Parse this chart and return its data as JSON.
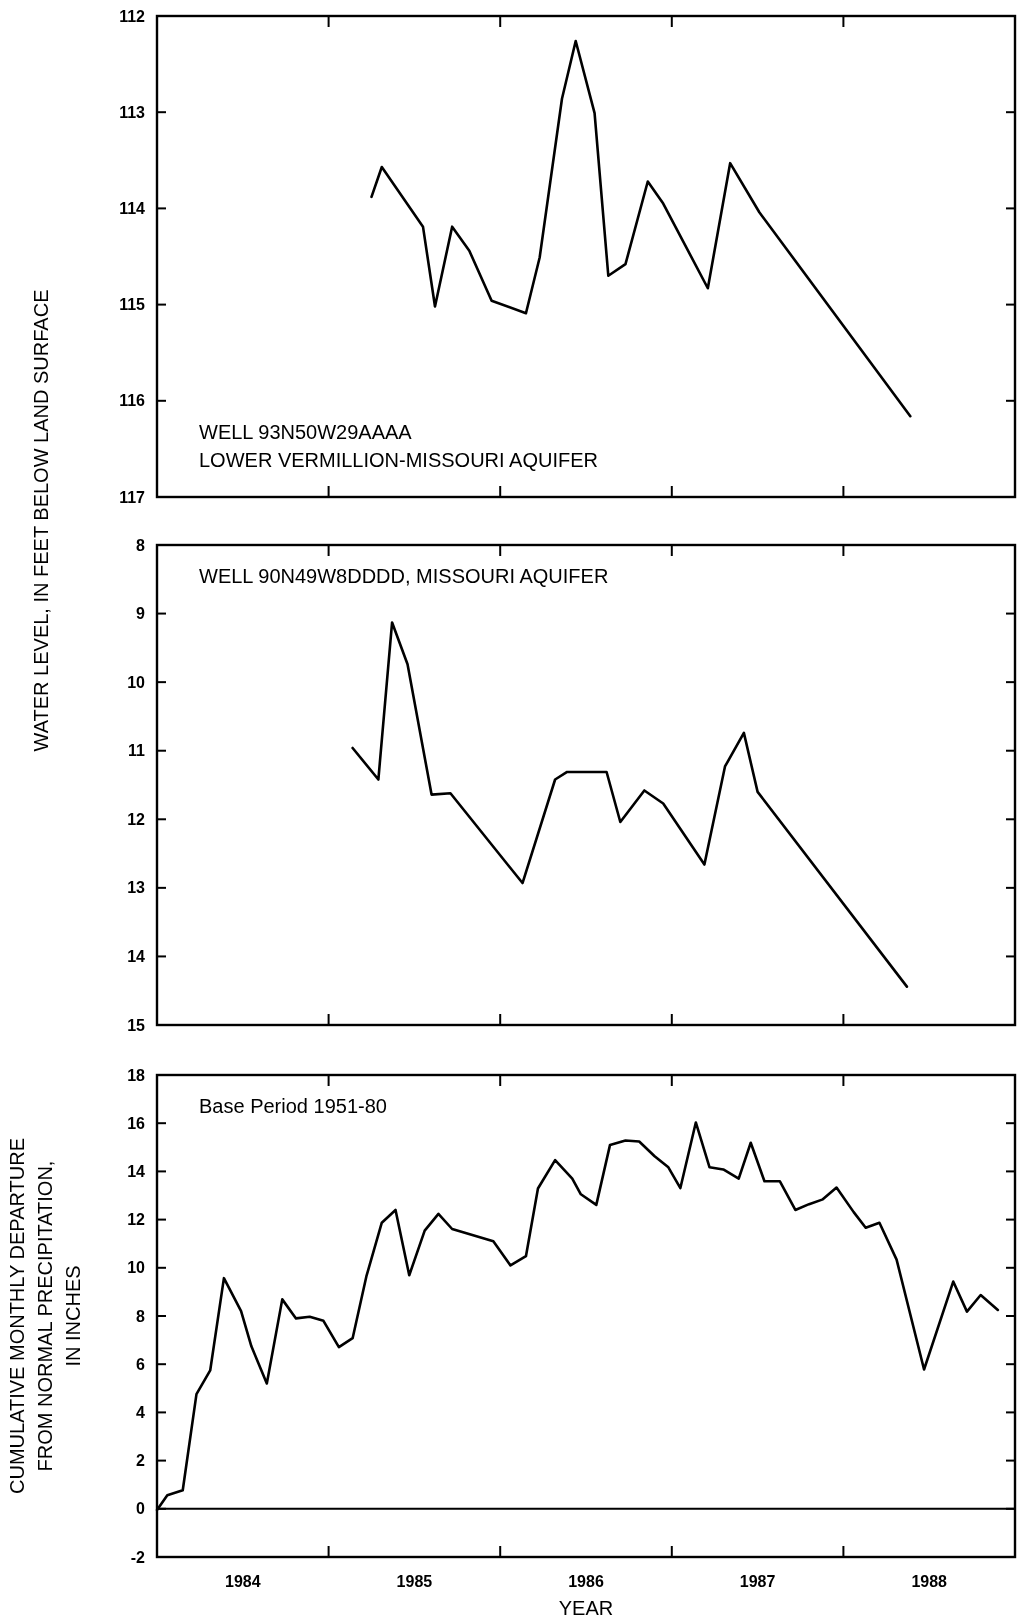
{
  "chart_data": [
    {
      "type": "line",
      "ylabel": "WATER LEVEL, IN FEET BELOW LAND SURFACE",
      "annotations": [
        "WELL 93N50W29AAAA",
        "LOWER VERMILLION-MISSOURI AQUIFER"
      ],
      "xlim": [
        1984,
        1989
      ],
      "ylim": [
        117,
        112
      ],
      "yticks": [
        112,
        113,
        114,
        115,
        116,
        117
      ],
      "xticks": [
        {
          "value": 1985,
          "label": null
        },
        {
          "value": 1986,
          "label": null
        },
        {
          "value": 1987,
          "label": null
        },
        {
          "value": 1988,
          "label": null
        }
      ],
      "tick_labels": "y",
      "grid": false,
      "marker": "none",
      "line_style": "solid",
      "series": [
        {
          "color": "#000000",
          "x": [
            1985.25,
            1985.31,
            1985.55,
            1985.62,
            1985.72,
            1985.82,
            1985.95,
            1986.15,
            1986.23,
            1986.36,
            1986.44,
            1986.55,
            1986.63,
            1986.73,
            1986.86,
            1986.95,
            1987.21,
            1987.34,
            1987.51,
            1988.39
          ],
          "values": [
            113.88,
            113.57,
            114.19,
            115.02,
            114.19,
            114.44,
            114.96,
            115.09,
            114.51,
            112.86,
            112.26,
            113.01,
            114.7,
            114.58,
            113.72,
            113.95,
            114.83,
            113.53,
            114.04,
            116.16
          ]
        }
      ]
    },
    {
      "type": "line",
      "annotations": [
        "WELL 90N49W8DDDD, MISSOURI AQUIFER"
      ],
      "xlim": [
        1984,
        1989
      ],
      "ylim": [
        15,
        8
      ],
      "yticks": [
        8,
        9,
        10,
        11,
        12,
        13,
        14,
        15
      ],
      "xticks": [
        {
          "value": 1985,
          "label": null
        },
        {
          "value": 1986,
          "label": null
        },
        {
          "value": 1987,
          "label": null
        },
        {
          "value": 1988,
          "label": null
        }
      ],
      "tick_labels": "y",
      "grid": false,
      "marker": "none",
      "line_style": "solid",
      "series": [
        {
          "color": "#000000",
          "x": [
            1985.14,
            1985.29,
            1985.37,
            1985.46,
            1985.6,
            1985.71,
            1986.13,
            1986.32,
            1986.39,
            1986.62,
            1986.7,
            1986.84,
            1986.95,
            1987.19,
            1987.31,
            1987.42,
            1987.5,
            1988.37
          ],
          "values": [
            10.96,
            11.42,
            9.13,
            9.74,
            11.64,
            11.62,
            12.93,
            11.42,
            11.31,
            11.31,
            12.04,
            11.58,
            11.77,
            12.66,
            11.23,
            10.74,
            11.6,
            14.44
          ]
        }
      ]
    },
    {
      "type": "line",
      "ylabel": "CUMULATIVE MONTHLY DEPARTURE\nFROM NORMAL PRECIPITATION,\nIN INCHES",
      "xlabel": "YEAR",
      "annotations": [
        "Base Period 1951-80"
      ],
      "xlim": [
        1984,
        1989
      ],
      "ylim": [
        -2,
        18
      ],
      "yticks": [
        -2,
        0,
        2,
        4,
        6,
        8,
        10,
        12,
        14,
        16,
        18
      ],
      "xticks": [
        {
          "value": 1984.5,
          "label": "1984"
        },
        {
          "value": 1985,
          "label": null
        },
        {
          "value": 1985.5,
          "label": "1985"
        },
        {
          "value": 1986,
          "label": null
        },
        {
          "value": 1986.5,
          "label": "1986"
        },
        {
          "value": 1987,
          "label": null
        },
        {
          "value": 1987.5,
          "label": "1987"
        },
        {
          "value": 1988,
          "label": null
        },
        {
          "value": 1988.5,
          "label": "1988"
        }
      ],
      "grid": false,
      "marker": "none",
      "line_style": "solid",
      "ref_lines": [
        {
          "axis": "y",
          "value": 0,
          "label": null,
          "color": "#000000"
        }
      ],
      "series": [
        {
          "color": "#000000",
          "x": [
            1984.0,
            1984.06,
            1984.15,
            1984.23,
            1984.31,
            1984.39,
            1984.49,
            1984.55,
            1984.64,
            1984.73,
            1984.81,
            1984.89,
            1984.97,
            1985.06,
            1985.14,
            1985.22,
            1985.31,
            1985.39,
            1985.47,
            1985.56,
            1985.64,
            1985.72,
            1985.96,
            1986.06,
            1986.15,
            1986.22,
            1986.32,
            1986.42,
            1986.47,
            1986.56,
            1986.64,
            1986.73,
            1986.81,
            1986.9,
            1986.98,
            1987.05,
            1987.14,
            1987.22,
            1987.3,
            1987.39,
            1987.46,
            1987.54,
            1987.63,
            1987.72,
            1987.8,
            1987.88,
            1987.96,
            1988.06,
            1988.13,
            1988.21,
            1988.31,
            1988.47,
            1988.64,
            1988.72,
            1988.8,
            1988.9
          ],
          "values": [
            -0.05,
            0.56,
            0.77,
            4.76,
            5.74,
            9.57,
            8.2,
            6.74,
            5.2,
            8.69,
            7.9,
            7.97,
            7.8,
            6.71,
            7.08,
            9.64,
            11.87,
            12.4,
            9.69,
            11.54,
            12.24,
            11.61,
            11.1,
            10.1,
            10.48,
            13.29,
            14.47,
            13.7,
            13.05,
            12.61,
            15.1,
            15.28,
            15.24,
            14.63,
            14.17,
            13.31,
            16.03,
            14.17,
            14.08,
            13.7,
            15.19,
            13.59,
            13.59,
            12.4,
            12.64,
            12.84,
            13.33,
            12.31,
            11.66,
            11.87,
            10.34,
            5.78,
            9.43,
            8.18,
            8.87,
            8.25
          ]
        }
      ]
    }
  ]
}
